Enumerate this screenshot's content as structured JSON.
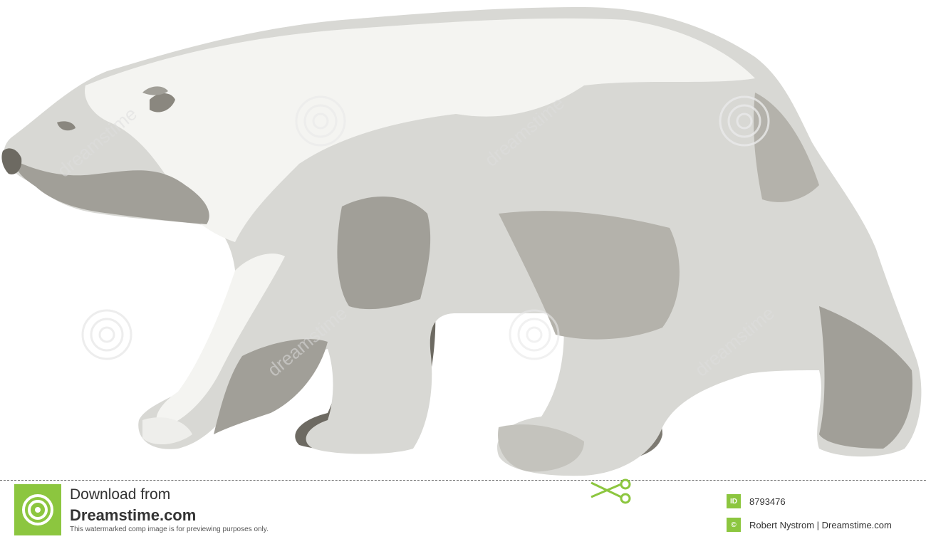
{
  "scene": {
    "subject": "polar bear",
    "colors": {
      "fur_light": "#d8d8d4",
      "fur_highlight": "#f4f4f1",
      "fur_mid": "#a19f98",
      "fur_dark": "#6d6a62",
      "background": "#ffffff"
    },
    "watermark": {
      "text": "dreamstime"
    }
  },
  "footer": {
    "download_line1": "Download from",
    "download_line2": "Dreamstime.com",
    "note": "This watermarked comp image is for previewing purposes only.",
    "id_icon": "ID",
    "image_id": "8793476",
    "copyright_icon": "©",
    "credit": "Robert Nystrom | Dreamstime.com",
    "accent_color": "#8cc63f"
  }
}
